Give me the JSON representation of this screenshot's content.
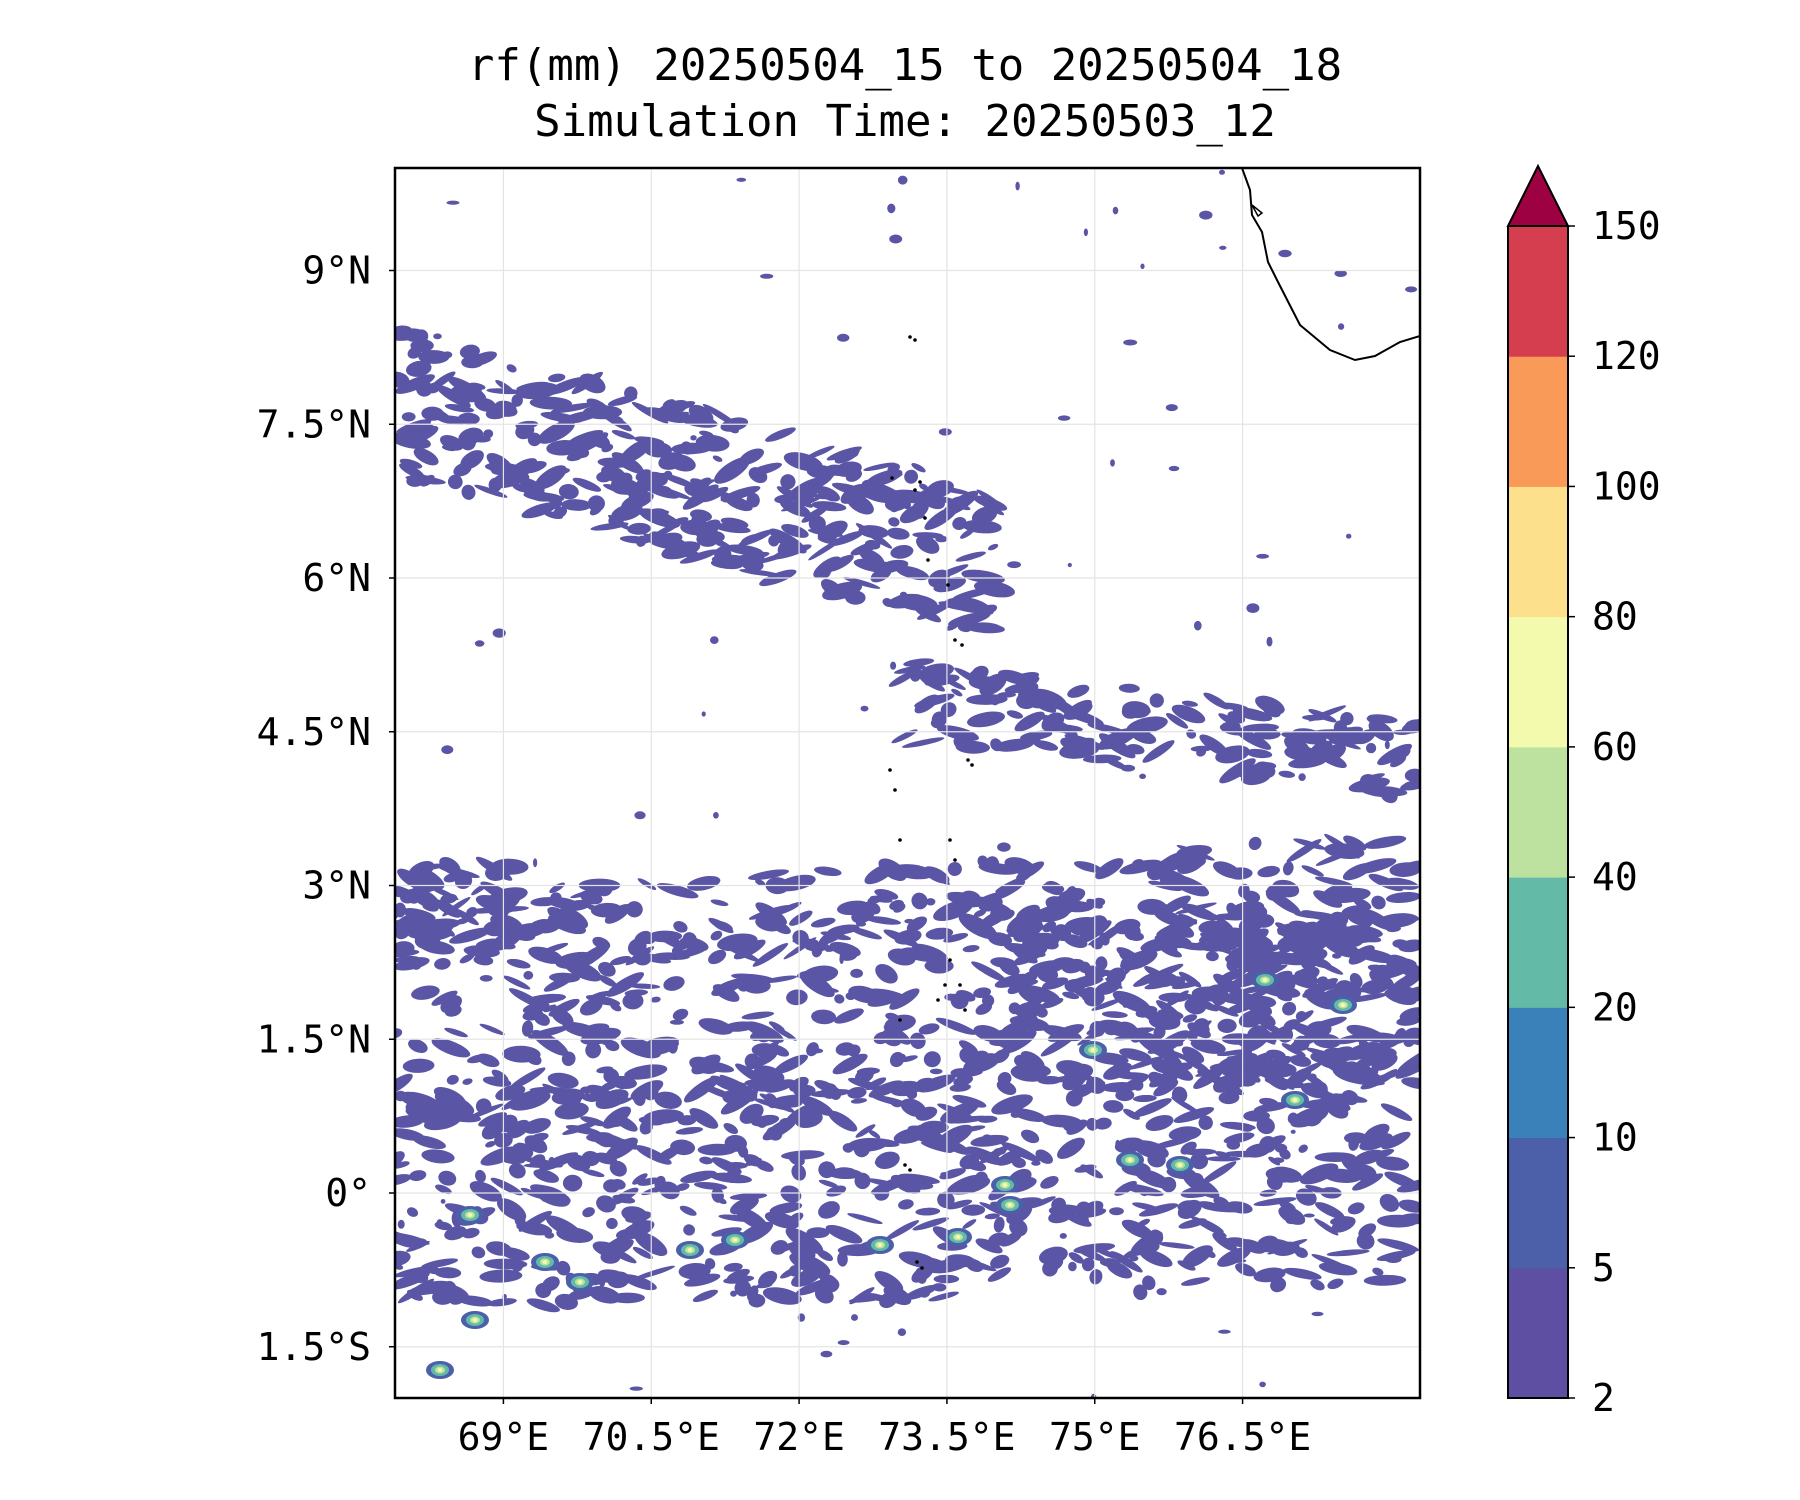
{
  "title": {
    "line1": "rf(mm) 20250504_15 to 20250504_18",
    "line2": "Simulation Time: 20250503_12"
  },
  "map": {
    "lon_range": [
      67.9,
      78.3
    ],
    "lat_range": [
      -2.0,
      10.0
    ],
    "lon_ticks": [
      {
        "value": 69.0,
        "label": "69°E"
      },
      {
        "value": 70.5,
        "label": "70.5°E"
      },
      {
        "value": 72.0,
        "label": "72°E"
      },
      {
        "value": 73.5,
        "label": "73.5°E"
      },
      {
        "value": 75.0,
        "label": "75°E"
      },
      {
        "value": 76.5,
        "label": "76.5°E"
      }
    ],
    "lat_ticks": [
      {
        "value": 9.0,
        "label": "9°N"
      },
      {
        "value": 7.5,
        "label": "7.5°N"
      },
      {
        "value": 6.0,
        "label": "6°N"
      },
      {
        "value": 4.5,
        "label": "4.5°N"
      },
      {
        "value": 3.0,
        "label": "3°N"
      },
      {
        "value": 1.5,
        "label": "1.5°N"
      },
      {
        "value": 0.0,
        "label": "0°"
      },
      {
        "value": -1.5,
        "label": "1.5°S"
      }
    ],
    "gridlines": true
  },
  "colorbar": {
    "levels": [
      2,
      5,
      10,
      20,
      40,
      60,
      80,
      100,
      120,
      150
    ],
    "labels": [
      "2",
      "5",
      "10",
      "20",
      "40",
      "60",
      "80",
      "100",
      "120",
      "150"
    ],
    "colors": [
      "#5e4fa2",
      "#4c5fa9",
      "#3a81ba",
      "#63bba7",
      "#bde2a0",
      "#f4faad",
      "#fce08b",
      "#fa9a58",
      "#d53e4f"
    ],
    "extend_color": "#9e0142",
    "extend": "max"
  },
  "style": {
    "rain_fill": "#5a55a5",
    "rain_mid": "#4c5fa9",
    "rain_teal": "#63bba7",
    "rain_green": "#bde2a0",
    "rain_yellow": "#f4faad"
  }
}
